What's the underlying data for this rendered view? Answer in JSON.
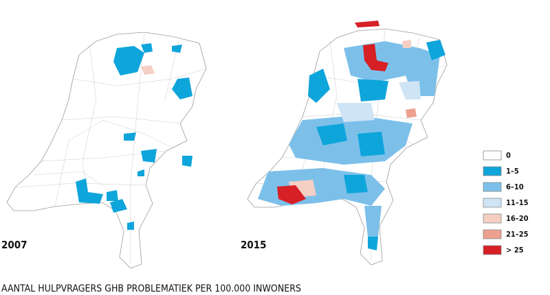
{
  "maps": [
    {
      "label": "2007"
    },
    {
      "label": "2015"
    }
  ],
  "legend": [
    {
      "label": "0",
      "color": "#ffffff"
    },
    {
      "label": "1–5",
      "color": "#0ea5db"
    },
    {
      "label": "6–10",
      "color": "#7cc0ea"
    },
    {
      "label": "11–15",
      "color": "#cfe4f5"
    },
    {
      "label": "16–20",
      "color": "#f5cfc4"
    },
    {
      "label": "21–25",
      "color": "#eea08e"
    },
    {
      "label": "> 25",
      "color": "#d71f26"
    }
  ],
  "caption": "AANTAL HULPVRAGERS GHB PROBLEMATIEK PER 100.000 INWONERS"
}
